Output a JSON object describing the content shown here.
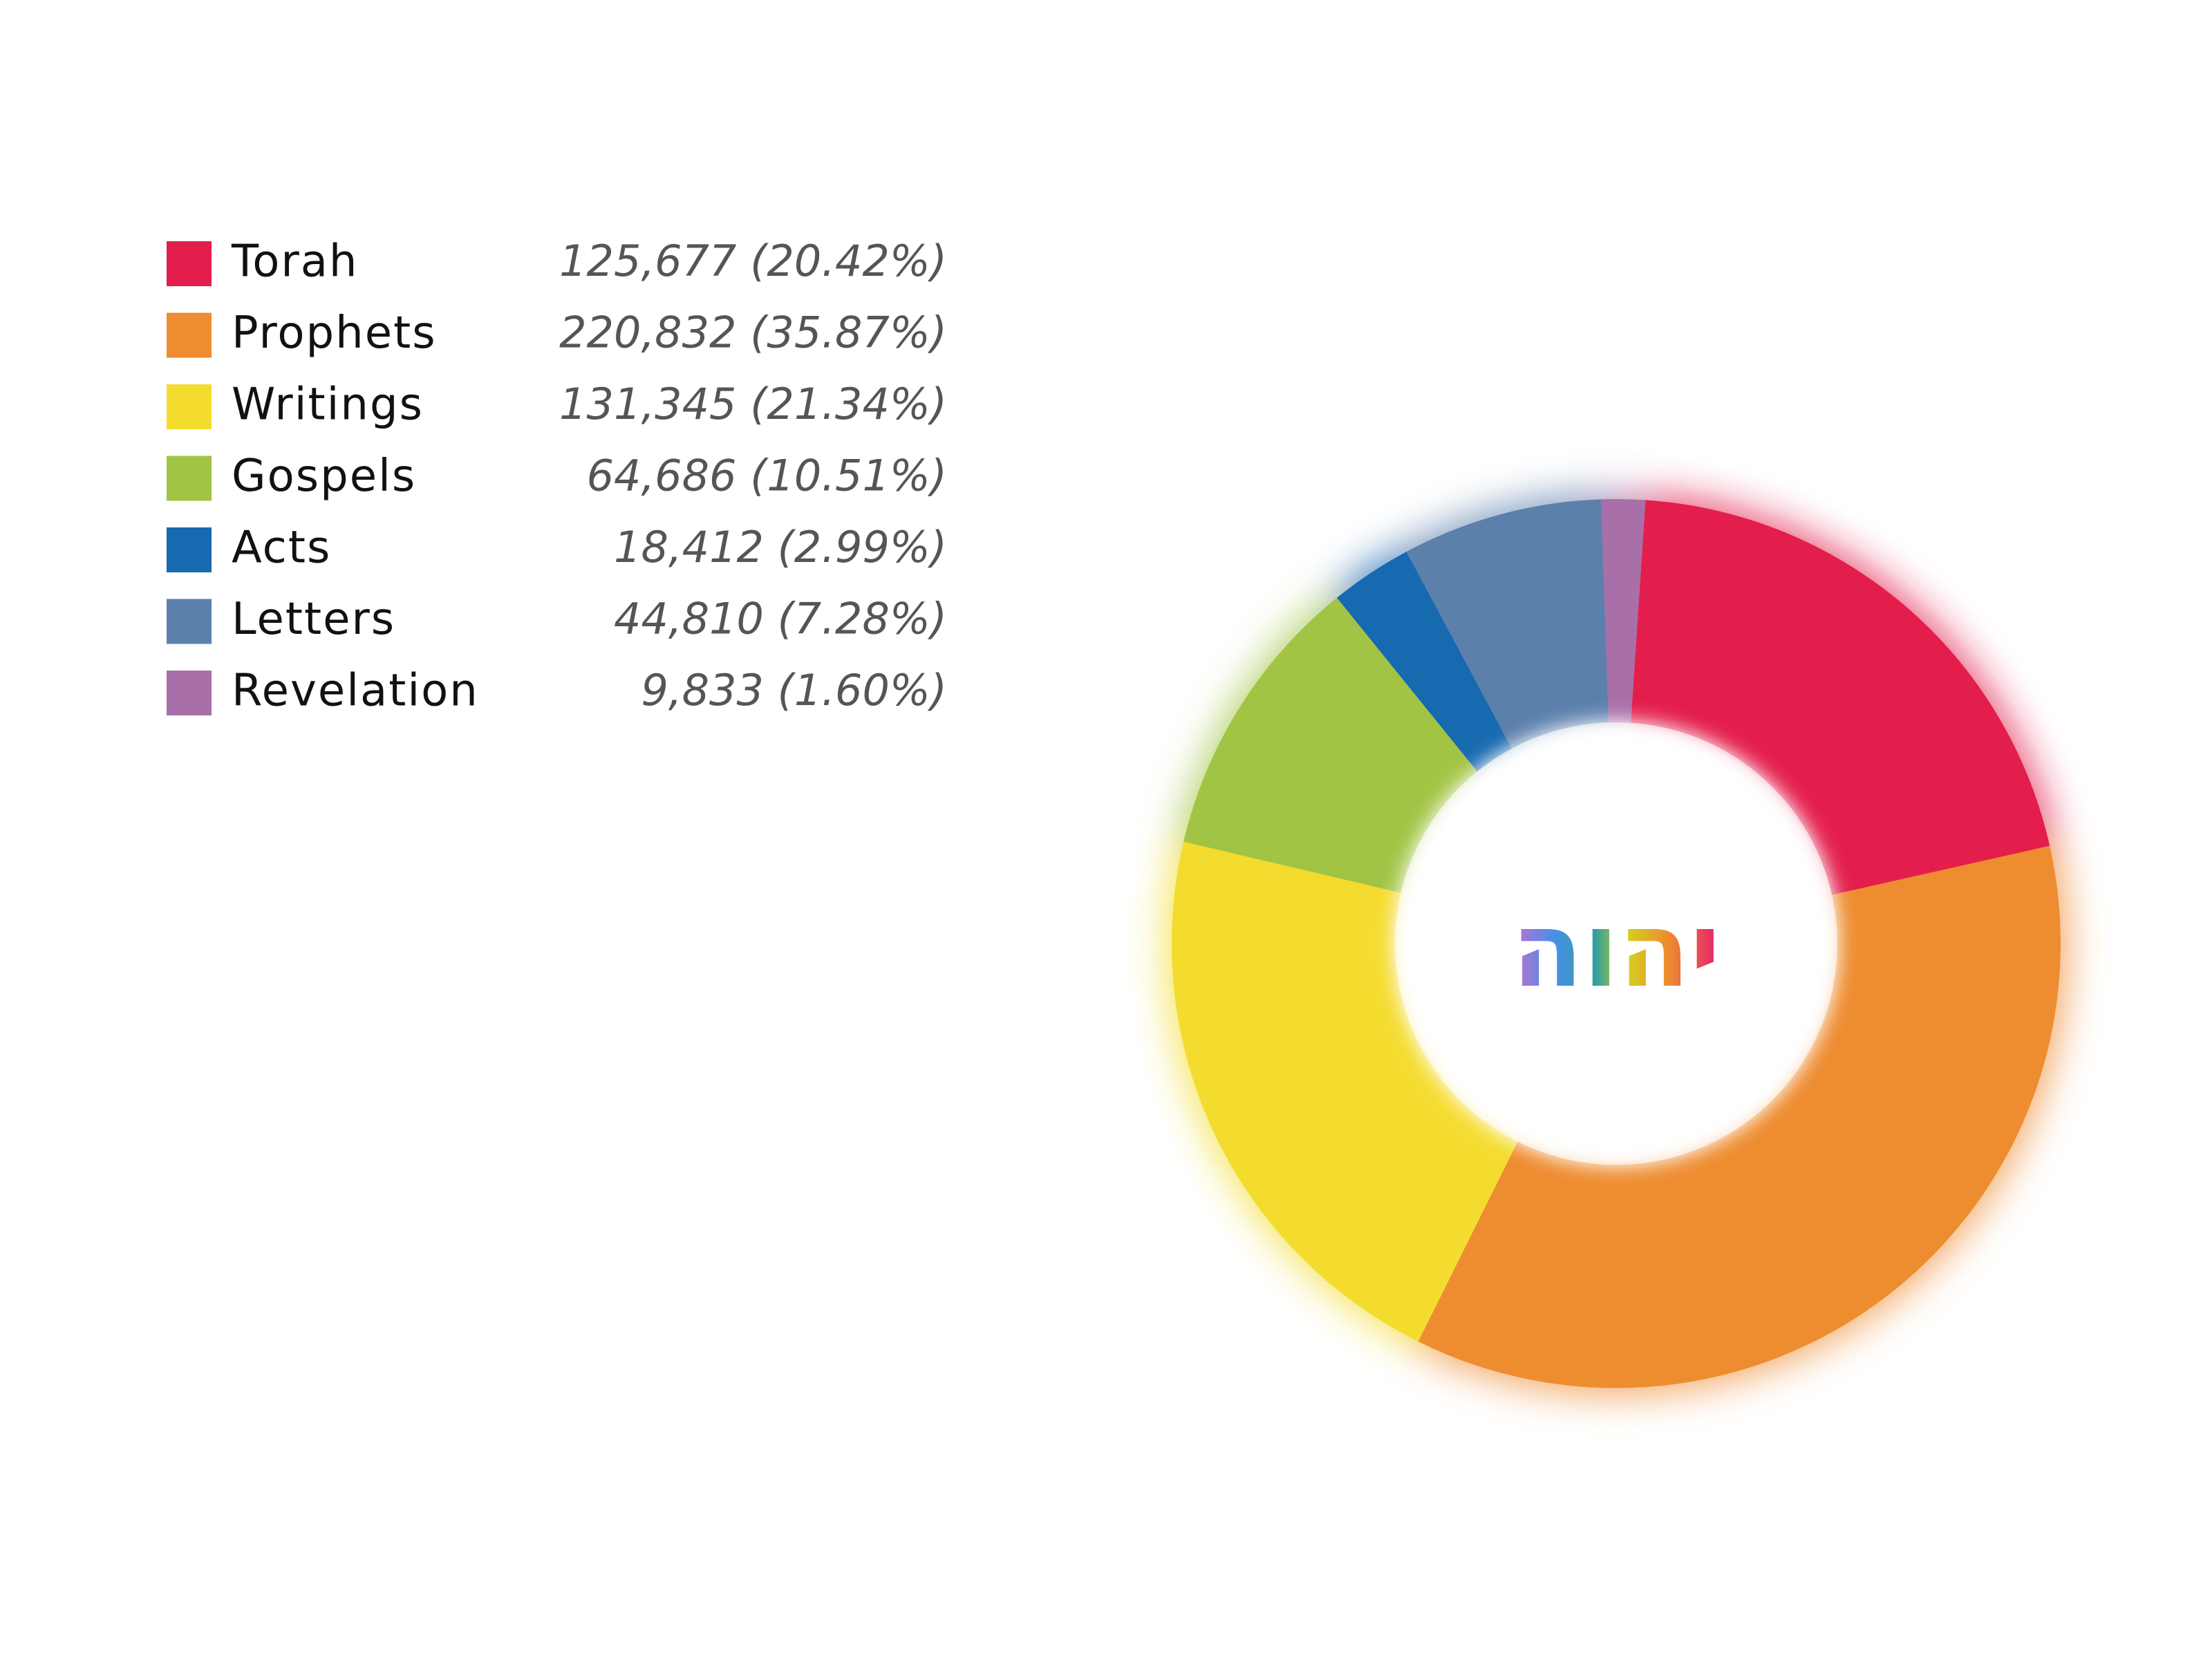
{
  "chart_data": {
    "type": "donut",
    "center_label": "יהוה",
    "categories": [
      "Torah",
      "Prophets",
      "Writings",
      "Gospels",
      "Acts",
      "Letters",
      "Revelation"
    ],
    "values": [
      125677,
      220832,
      131345,
      64686,
      18412,
      44810,
      9833
    ],
    "value_labels": [
      "125,677 (20.42%)",
      "220,832 (35.87%)",
      "131,345 (21.34%)",
      "64,686 (10.51%)",
      "18,412 (2.99%)",
      "44,810 (7.28%)",
      "9,833 (1.60%)"
    ],
    "colors": [
      "#e31e4c",
      "#ee8c30",
      "#f4dc2f",
      "#a2c444",
      "#1769b0",
      "#5b80ac",
      "#a86fa8"
    ]
  }
}
